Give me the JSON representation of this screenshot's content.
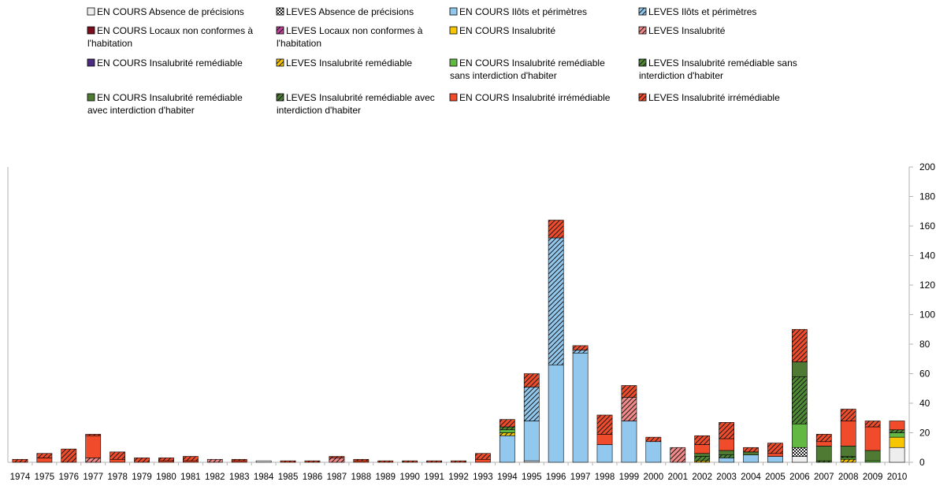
{
  "colors": {
    "EN COURS Absence de précisions": "#eeeeee",
    "LEVES Absence de précisions": "#555555",
    "EN COURS Ilôts et périmètres": "#92c8ee",
    "LEVES Ilôts et périmètres": "#92c8ee",
    "EN COURS Locaux non conformes à l'habitation": "#7a0e1e",
    "LEVES Locaux non conformes à l'habitation": "#c0439a",
    "EN COURS Insalubrité": "#f7c600",
    "LEVES Insalubrité": "#f28a8a",
    "EN COURS Insalubrité remédiable": "#4a2b80",
    "LEVES Insalubrité remédiable": "#f7c600",
    "EN COURS Insalubrité remédiable sans interdiction d'habiter": "#62b842",
    "LEVES Insalubrité remédiable sans interdiction d'habiter": "#4e8a34",
    "EN COURS Insalubrité remédiable avec interdiction d'habiter": "#4e7a34",
    "LEVES Insalubrité remédiable avec interdiction d'habiter": "#4e7a34",
    "EN COURS Insalubrité irrémédiable": "#f04b2a",
    "LEVES Insalubrité irrémédiable": "#f04b2a"
  },
  "chart_data": {
    "type": "bar",
    "stacked": true,
    "title": "",
    "xlabel": "",
    "ylabel": "",
    "ylim": [
      0,
      200
    ],
    "yticks": [
      "0",
      "20",
      "40",
      "60",
      "80",
      "100",
      "120",
      "140",
      "160",
      "180",
      "200"
    ],
    "y_axis_side": "right",
    "grid": false,
    "legend_position": "top",
    "categories": [
      "1974",
      "1975",
      "1976",
      "1977",
      "1978",
      "1979",
      "1980",
      "1981",
      "1982",
      "1983",
      "1984",
      "1985",
      "1986",
      "1987",
      "1988",
      "1989",
      "1990",
      "1991",
      "1992",
      "1993",
      "1994",
      "1995",
      "1996",
      "1997",
      "1998",
      "1999",
      "2000",
      "2001",
      "2002",
      "2003",
      "2004",
      "2005",
      "2006",
      "2007",
      "2008",
      "2009",
      "2010"
    ],
    "series": [
      {
        "name": "EN COURS Absence de précisions",
        "pattern": "solid",
        "values": [
          0,
          0,
          0,
          0,
          0,
          0,
          0,
          0,
          0,
          0,
          1,
          0,
          0,
          0,
          0,
          0,
          0,
          0,
          0,
          0,
          0,
          1,
          0,
          0,
          0,
          0,
          0,
          0,
          0,
          0,
          0,
          0,
          4,
          0,
          0,
          0,
          10
        ]
      },
      {
        "name": "LEVES Absence de précisions",
        "pattern": "checker",
        "values": [
          0,
          0,
          0,
          0,
          0,
          0,
          0,
          0,
          0,
          0,
          0,
          0,
          0,
          0,
          0,
          0,
          0,
          0,
          0,
          0,
          0,
          0,
          0,
          0,
          0,
          0,
          0,
          0,
          0,
          0,
          0,
          0,
          6,
          0,
          0,
          0,
          0
        ]
      },
      {
        "name": "EN COURS Ilôts et périmètres",
        "pattern": "solid",
        "values": [
          0,
          0,
          0,
          0,
          0,
          0,
          0,
          0,
          0,
          0,
          0,
          0,
          0,
          0,
          0,
          0,
          0,
          0,
          0,
          0,
          18,
          27,
          66,
          74,
          12,
          28,
          14,
          0,
          0,
          3,
          5,
          4,
          0,
          0,
          0,
          0,
          0
        ]
      },
      {
        "name": "LEVES Ilôts et périmètres",
        "pattern": "hatch",
        "values": [
          0,
          0,
          0,
          0,
          0,
          0,
          0,
          0,
          0,
          0,
          0,
          0,
          0,
          0,
          0,
          0,
          0,
          0,
          0,
          0,
          0,
          23,
          86,
          2,
          0,
          0,
          0,
          0,
          0,
          0,
          0,
          0,
          0,
          0,
          0,
          0,
          0
        ]
      },
      {
        "name": "EN COURS Locaux non conformes à l'habitation",
        "pattern": "solid",
        "values": [
          0,
          0,
          0,
          0,
          0,
          0,
          0,
          0,
          0,
          0,
          0,
          0,
          0,
          0,
          0,
          0,
          0,
          0,
          0,
          0,
          0,
          0,
          0,
          0,
          0,
          0,
          0,
          0,
          0,
          0,
          0,
          0,
          0,
          0,
          0,
          0,
          0
        ]
      },
      {
        "name": "LEVES Locaux non conformes à l'habitation",
        "pattern": "hatch",
        "values": [
          0,
          0,
          0,
          0,
          0,
          0,
          0,
          0,
          0,
          0,
          0,
          0,
          0,
          0,
          0,
          0,
          0,
          0,
          0,
          0,
          0,
          0,
          0,
          0,
          0,
          0,
          0,
          0,
          0,
          0,
          0,
          0,
          0,
          0,
          0,
          0,
          0
        ]
      },
      {
        "name": "EN COURS Insalubrité",
        "pattern": "solid",
        "values": [
          0,
          0,
          0,
          0,
          0,
          0,
          0,
          0,
          0,
          0,
          0,
          0,
          0,
          0,
          0,
          0,
          0,
          0,
          0,
          0,
          0,
          0,
          0,
          0,
          0,
          0,
          0,
          0,
          0,
          0,
          0,
          0,
          0,
          0,
          0,
          0,
          7
        ]
      },
      {
        "name": "LEVES Insalubrité",
        "pattern": "hatch",
        "values": [
          0,
          0,
          0,
          3,
          0,
          0,
          0,
          0,
          2,
          0,
          0,
          0,
          0,
          3,
          0,
          0,
          0,
          0,
          0,
          0,
          0,
          0,
          0,
          0,
          0,
          16,
          0,
          10,
          0,
          0,
          0,
          0,
          0,
          0,
          0,
          0,
          0
        ]
      },
      {
        "name": "EN COURS Insalubrité remédiable",
        "pattern": "solid",
        "values": [
          0,
          0,
          0,
          0,
          0,
          0,
          0,
          0,
          0,
          0,
          0,
          0,
          0,
          0,
          0,
          0,
          0,
          0,
          0,
          0,
          0,
          0,
          0,
          0,
          0,
          0,
          0,
          0,
          0,
          0,
          0,
          0,
          0,
          0,
          0,
          0,
          0
        ]
      },
      {
        "name": "LEVES Insalubrité remédiable",
        "pattern": "hatch",
        "values": [
          0,
          0,
          0,
          0,
          0,
          0,
          0,
          0,
          0,
          0,
          0,
          0,
          0,
          0,
          0,
          0,
          0,
          0,
          0,
          0,
          2,
          0,
          0,
          0,
          0,
          0,
          0,
          0,
          1,
          0,
          0,
          0,
          0,
          0,
          2,
          0,
          0
        ]
      },
      {
        "name": "EN COURS Insalubrité remédiable sans interdiction d'habiter",
        "pattern": "solid",
        "values": [
          0,
          0,
          0,
          0,
          0,
          0,
          0,
          0,
          0,
          0,
          0,
          0,
          0,
          0,
          0,
          0,
          0,
          0,
          0,
          0,
          2,
          0,
          0,
          0,
          0,
          0,
          0,
          0,
          0,
          0,
          0,
          0,
          16,
          0,
          1,
          1,
          3
        ]
      },
      {
        "name": "LEVES Insalubrité remédiable sans interdiction d'habiter",
        "pattern": "hatch",
        "values": [
          0,
          0,
          0,
          0,
          0,
          0,
          0,
          0,
          0,
          0,
          0,
          0,
          0,
          0,
          0,
          0,
          0,
          0,
          0,
          0,
          2,
          0,
          0,
          0,
          0,
          0,
          0,
          0,
          3,
          2,
          0,
          0,
          32,
          1,
          1,
          0,
          2
        ]
      },
      {
        "name": "EN COURS Insalubrité remédiable avec interdiction d'habiter",
        "pattern": "solid",
        "values": [
          0,
          0,
          0,
          0,
          0,
          0,
          0,
          0,
          0,
          0,
          0,
          0,
          0,
          0,
          0,
          0,
          0,
          0,
          0,
          0,
          0,
          0,
          0,
          0,
          0,
          0,
          0,
          0,
          2,
          3,
          2,
          0,
          10,
          10,
          7,
          7,
          0
        ]
      },
      {
        "name": "LEVES Insalubrité remédiable avec interdiction d'habiter",
        "pattern": "hatch",
        "values": [
          0,
          0,
          0,
          0,
          0,
          0,
          0,
          0,
          0,
          0,
          0,
          0,
          0,
          0,
          0,
          0,
          0,
          0,
          0,
          0,
          0,
          0,
          0,
          0,
          0,
          0,
          0,
          0,
          0,
          0,
          0,
          0,
          0,
          0,
          0,
          0,
          0
        ]
      },
      {
        "name": "EN COURS Insalubrité irrémédiable",
        "pattern": "solid",
        "values": [
          0,
          3,
          0,
          15,
          2,
          0,
          1,
          1,
          0,
          1,
          0,
          0,
          0,
          0,
          1,
          0,
          0,
          0,
          0,
          2,
          0,
          0,
          0,
          0,
          7,
          0,
          0,
          0,
          6,
          8,
          0,
          2,
          0,
          3,
          17,
          16,
          6
        ]
      },
      {
        "name": "LEVES Insalubrité irrémédiable",
        "pattern": "hatch",
        "values": [
          2,
          3,
          9,
          1,
          5,
          3,
          2,
          3,
          0,
          1,
          0,
          1,
          1,
          1,
          1,
          1,
          1,
          1,
          1,
          4,
          5,
          9,
          12,
          3,
          13,
          8,
          3,
          0,
          6,
          11,
          3,
          7,
          22,
          5,
          8,
          4,
          0
        ]
      }
    ]
  }
}
